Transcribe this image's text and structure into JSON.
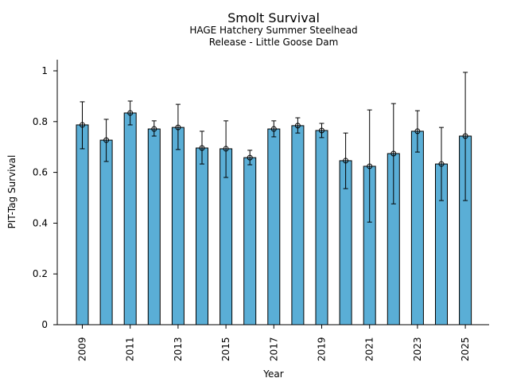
{
  "chart_data": {
    "type": "bar",
    "title": "Smolt Survival",
    "subtitle_lines": [
      "HAGE Hatchery Summer Steelhead",
      "Release - Little Goose Dam"
    ],
    "xlabel": "Year",
    "ylabel": "PIT-Tag Survival",
    "ylim": [
      0,
      1.04
    ],
    "yticks": [
      0,
      0.2,
      0.4,
      0.6,
      0.8,
      1
    ],
    "ytick_labels": [
      "0",
      "0.2",
      "0.4",
      "0.6",
      "0.8",
      "1"
    ],
    "xtick_labels_shown": [
      "2009",
      "2011",
      "2013",
      "2015",
      "2017",
      "2019",
      "2021",
      "2023",
      "2025"
    ],
    "categories": [
      "2009",
      "2010",
      "2011",
      "2012",
      "2013",
      "2014",
      "2015",
      "2016",
      "2017",
      "2018",
      "2019",
      "2020",
      "2021",
      "2022",
      "2023",
      "2024",
      "2025"
    ],
    "values": [
      0.787,
      0.727,
      0.834,
      0.771,
      0.777,
      0.696,
      0.693,
      0.658,
      0.771,
      0.784,
      0.765,
      0.646,
      0.624,
      0.674,
      0.762,
      0.633,
      0.743
    ],
    "error_upper": [
      0.878,
      0.809,
      0.881,
      0.803,
      0.868,
      0.762,
      0.803,
      0.687,
      0.803,
      0.815,
      0.793,
      0.755,
      0.846,
      0.871,
      0.843,
      0.777,
      0.994
    ],
    "error_lower": [
      0.693,
      0.643,
      0.787,
      0.743,
      0.69,
      0.633,
      0.58,
      0.63,
      0.74,
      0.755,
      0.737,
      0.536,
      0.404,
      0.476,
      0.68,
      0.489,
      0.489
    ],
    "grid": false,
    "legend": "none",
    "colors": {
      "bar": "#5aaed6",
      "edge": "#000000",
      "error": "#000000"
    }
  }
}
